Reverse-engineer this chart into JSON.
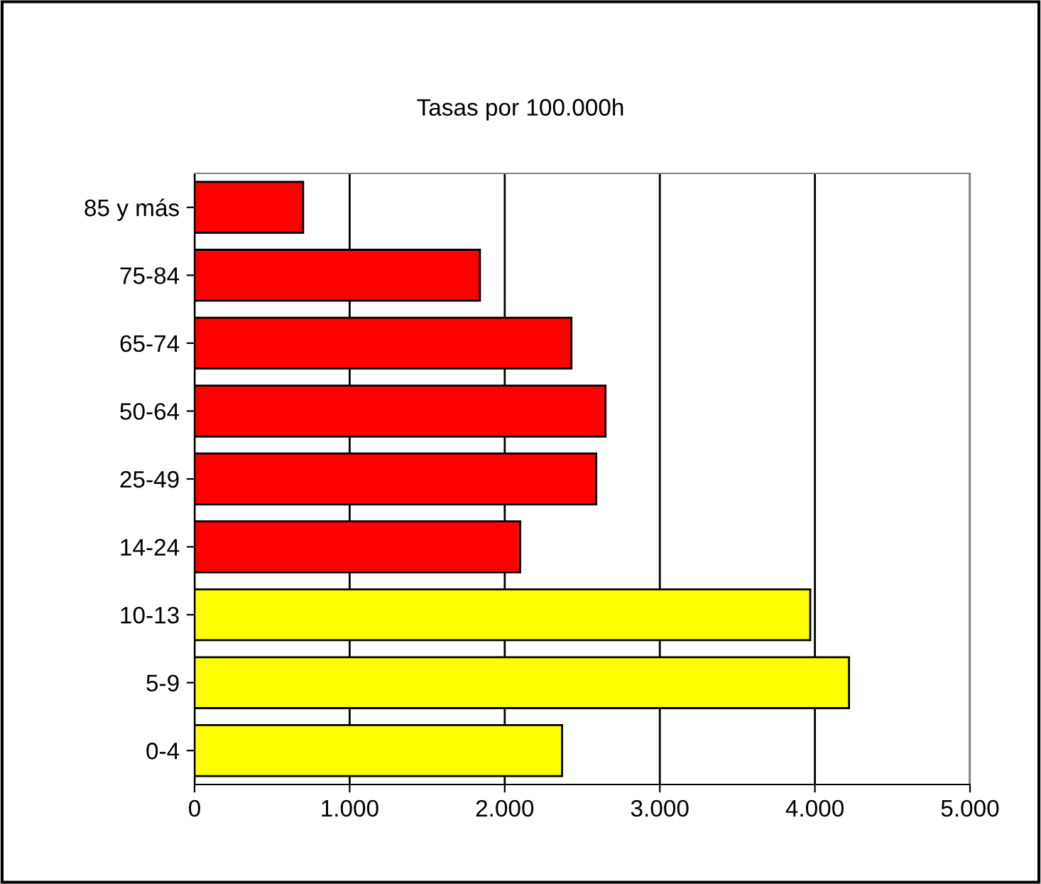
{
  "chart_data": {
    "type": "bar",
    "orientation": "horizontal",
    "title": "Tasas por 100.000h",
    "categories": [
      "85 y más",
      "75-84",
      "65-74",
      "50-64",
      "25-49",
      "14-24",
      "10-13",
      "5-9",
      "0-4"
    ],
    "values": [
      700,
      1840,
      2430,
      2650,
      2590,
      2100,
      3970,
      4220,
      2370
    ],
    "colors": [
      "#ff0000",
      "#ff0000",
      "#ff0000",
      "#ff0000",
      "#ff0000",
      "#ff0000",
      "#ffff00",
      "#ffff00",
      "#ffff00"
    ],
    "xlim": [
      0,
      5000
    ],
    "xticks": [
      0,
      {
        "value": 1000,
        "label": "1.000"
      },
      {
        "value": 2000,
        "label": "2.000"
      },
      {
        "value": 3000,
        "label": "3.000"
      },
      {
        "value": 4000,
        "label": "4.000"
      },
      {
        "value": 5000,
        "label": "5.000"
      }
    ],
    "grid": "x",
    "legend": false
  }
}
